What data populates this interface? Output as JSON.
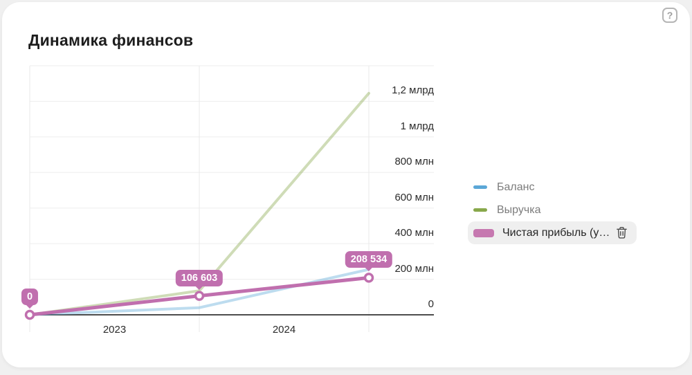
{
  "card": {
    "title": "Динамика финансов"
  },
  "help": {
    "glyph": "?"
  },
  "chart_data": {
    "type": "line",
    "title": "Динамика финансов",
    "grid": true,
    "legend_position": "right",
    "x_tick_labels": [
      "2023",
      "2024"
    ],
    "y_axis": {
      "side": "right",
      "max_value": 1400000000,
      "ticks": [
        {
          "label": "1,2 млрд",
          "value": 1200000000
        },
        {
          "label": "1 млрд",
          "value": 1000000000
        },
        {
          "label": "800 млн",
          "value": 800000000
        },
        {
          "label": "600 млн",
          "value": 600000000
        },
        {
          "label": "400 млн",
          "value": 400000000
        },
        {
          "label": "200 млн",
          "value": 200000000
        },
        {
          "label": "0",
          "value": 0
        }
      ]
    },
    "series": [
      {
        "name": "Баланс",
        "color": "#5ba7d7",
        "dimmed": true,
        "values": [
          0,
          40000000,
          255000000
        ],
        "values_estimated": true
      },
      {
        "name": "Выручка",
        "color": "#88a84b",
        "dimmed": true,
        "values": [
          0,
          135000000,
          1245000000
        ],
        "values_estimated": true
      },
      {
        "name": "Чистая прибыль (у…",
        "color": "#c06fae",
        "dimmed": false,
        "highlighted": true,
        "values": [
          0,
          106603000,
          208534000
        ],
        "point_labels": [
          "0",
          "106 603",
          "208 534"
        ]
      }
    ]
  },
  "legend": {
    "items": [
      {
        "label": "Баланс",
        "color": "#5ba7d7",
        "active": false
      },
      {
        "label": "Выручка",
        "color": "#88a84b",
        "active": false
      },
      {
        "label": "Чистая прибыль (у…",
        "color": "#c678b0",
        "active": true,
        "has_delete": true
      }
    ]
  }
}
